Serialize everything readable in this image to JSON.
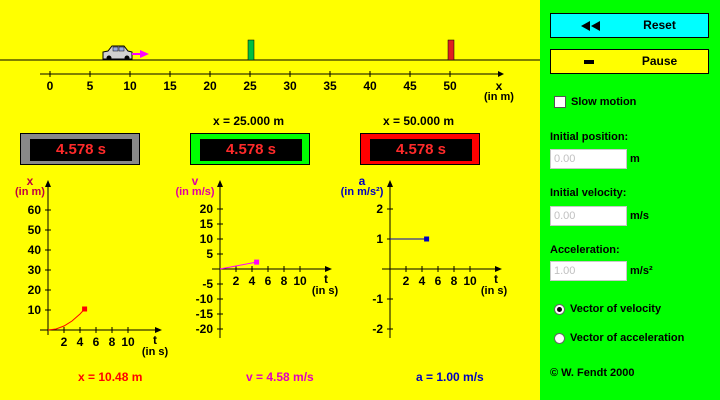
{
  "stage": {
    "axis_label": "x",
    "axis_unit": "(in m)",
    "ticks": [
      "0",
      "5",
      "10",
      "15",
      "20",
      "25",
      "30",
      "35",
      "40",
      "45",
      "50"
    ],
    "sensor1_label": "x = 25.000 m",
    "sensor2_label": "x = 50.000 m",
    "colors": {
      "background": "#ffff00",
      "sensor1": "#00c040",
      "sensor2": "#e02020",
      "arrow": "#ff00ff"
    }
  },
  "timers": [
    "4.578 s",
    "4.578 s",
    "4.578 s"
  ],
  "graphs": {
    "position": {
      "ylabel": "x",
      "yunit": "(in m)",
      "yticks": [
        "10",
        "20",
        "30",
        "40",
        "50",
        "60"
      ],
      "xlabel": "t",
      "xunit": "(in s)",
      "xticks": [
        "2",
        "4",
        "6",
        "8",
        "10"
      ],
      "readout": "x = 10.48 m",
      "color": "#ff0000"
    },
    "velocity": {
      "ylabel": "v",
      "yunit": "(in m/s)",
      "yticks": [
        "20",
        "15",
        "10",
        "5",
        "-5",
        "-10",
        "-15",
        "-20"
      ],
      "xlabel": "t",
      "xunit": "(in s)",
      "xticks": [
        "2",
        "4",
        "6",
        "8",
        "10"
      ],
      "readout": "v = 4.58 m/s",
      "color": "#ff00ff"
    },
    "acceleration": {
      "ylabel": "a",
      "yunit": "(in m/s²)",
      "yticks": [
        "2",
        "1",
        "-1",
        "-2"
      ],
      "xlabel": "t",
      "xunit": "(in s)",
      "xticks": [
        "2",
        "4",
        "6",
        "8",
        "10"
      ],
      "readout": "a = 1.00 m/s",
      "color": "#0000c0"
    }
  },
  "chart_data": [
    {
      "type": "line",
      "ylabel": "x",
      "xlabel": "t",
      "xlim": [
        0,
        10
      ],
      "ylim": [
        0,
        60
      ],
      "series": [
        {
          "x": [
            0,
            1,
            2,
            3,
            4,
            4.578
          ],
          "y": [
            0,
            0.5,
            2,
            4.5,
            8,
            10.48
          ]
        }
      ]
    },
    {
      "type": "line",
      "ylabel": "v",
      "xlabel": "t",
      "xlim": [
        0,
        10
      ],
      "ylim": [
        -20,
        20
      ],
      "series": [
        {
          "x": [
            0,
            4.578
          ],
          "y": [
            0,
            4.58
          ]
        }
      ]
    },
    {
      "type": "line",
      "ylabel": "a",
      "xlabel": "t",
      "xlim": [
        0,
        10
      ],
      "ylim": [
        -2,
        2
      ],
      "series": [
        {
          "x": [
            0,
            4.578
          ],
          "y": [
            1,
            1
          ]
        }
      ]
    }
  ],
  "panel": {
    "reset_label": "Reset",
    "pause_label": "Pause",
    "slow_motion_label": "Slow motion",
    "initial_position_label": "Initial position:",
    "initial_position_value": "0.00",
    "initial_position_unit": "m",
    "initial_velocity_label": "Initial velocity:",
    "initial_velocity_value": "0.00",
    "initial_velocity_unit": "m/s",
    "acceleration_label": "Acceleration:",
    "acceleration_value": "1.00",
    "acceleration_unit": "m/s²",
    "vector_velocity_label": "Vector of velocity",
    "vector_acceleration_label": "Vector of acceleration",
    "copyright": "© W. Fendt 2000",
    "colors": {
      "background": "#00ff00",
      "reset_bg": "#00ffff",
      "pause_bg": "#ffff00"
    }
  }
}
